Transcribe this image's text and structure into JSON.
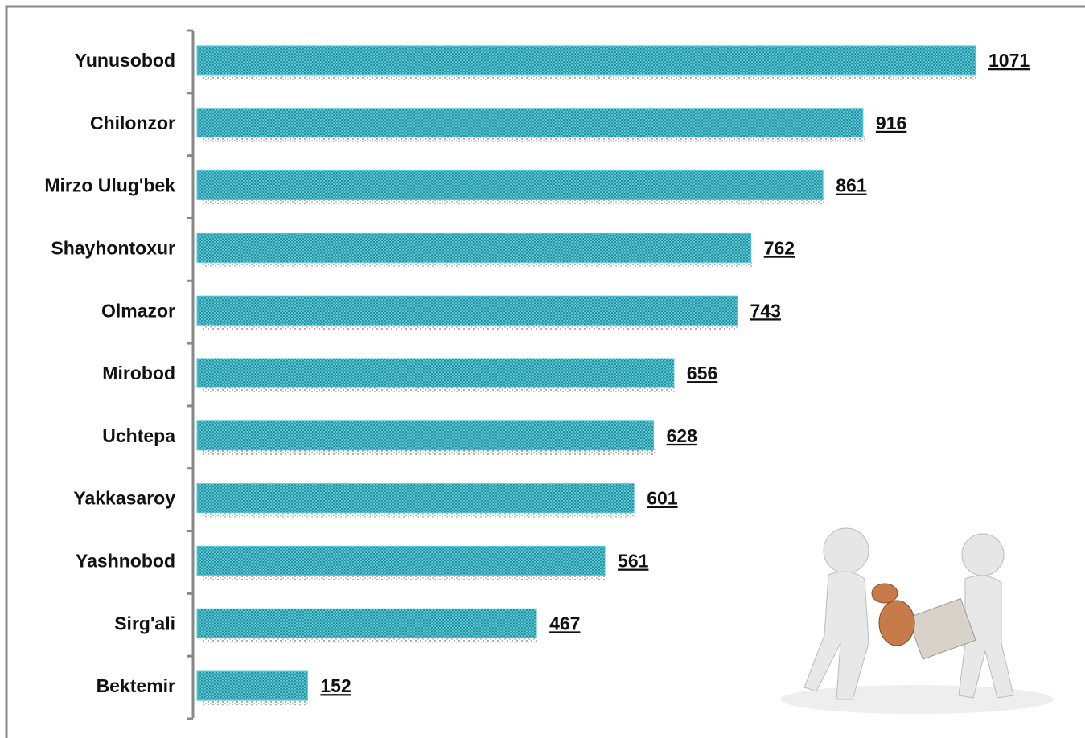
{
  "chart_data": {
    "type": "bar",
    "orientation": "horizontal",
    "categories": [
      "Yunusobod",
      "Chilonzor",
      "Mirzo Ulug'bek",
      "Shayhontoxur",
      "Olmazor",
      "Mirobod",
      "Uchtepa",
      "Yakkasaroy",
      "Yashnobod",
      "Sirg'ali",
      "Bektemir"
    ],
    "values": [
      1071,
      916,
      861,
      762,
      743,
      656,
      628,
      601,
      561,
      467,
      152
    ],
    "color": "#4fc8d8",
    "xlim": [
      0,
      1071
    ]
  }
}
